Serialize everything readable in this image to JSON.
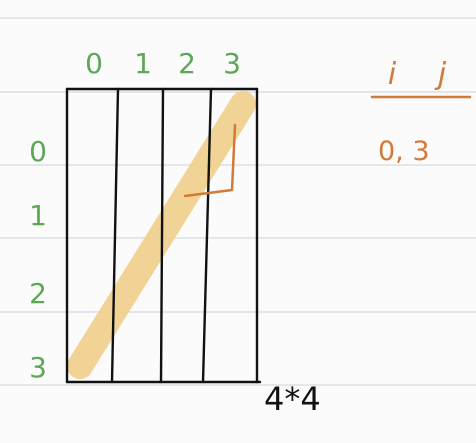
{
  "grid": {
    "column_indices": [
      "0",
      "1",
      "2",
      "3"
    ],
    "row_indices": [
      "0",
      "1",
      "2",
      "3"
    ],
    "size_label": "4*4"
  },
  "side_note": {
    "header_left": "i",
    "header_right": "j",
    "value": "0, 3"
  },
  "colors": {
    "index_green": "#5da856",
    "note_orange": "#d27a3a",
    "highlight_yellow": "#f1d08a",
    "ruled_line": "#e3e6ea",
    "ink": "#111111"
  }
}
